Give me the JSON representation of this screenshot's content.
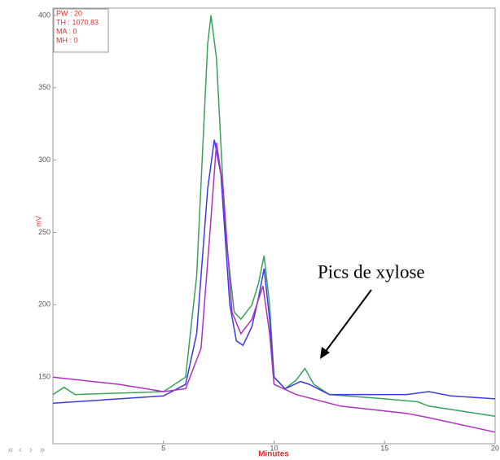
{
  "chart_data": {
    "type": "line",
    "y_label": "mV",
    "x_label": "Minutes",
    "info": [
      "PW : 20",
      "TH : 1070,83",
      "MA : 0",
      "MH : 0"
    ],
    "annotation": "Pics de xylose",
    "nav": [
      "«",
      "‹",
      "›",
      "»"
    ],
    "xlim": [
      0,
      20
    ],
    "xticks": [
      5,
      10,
      15,
      20
    ],
    "ylim": [
      104,
      405
    ],
    "yticks": [
      150,
      200,
      250,
      300,
      350,
      400
    ],
    "series": [
      {
        "name": "green",
        "color": "#3aa05a",
        "x": [
          0,
          0.5,
          1,
          5,
          6,
          6.5,
          7,
          7.15,
          7.4,
          7.8,
          8.2,
          8.5,
          9,
          9.3,
          9.55,
          9.8,
          10,
          10.5,
          11,
          11.4,
          11.8,
          12.5,
          15,
          16.5,
          17,
          20
        ],
        "values": [
          138,
          143,
          138,
          140,
          150,
          220,
          380,
          400,
          370,
          250,
          195,
          190,
          200,
          215,
          234,
          200,
          150,
          142,
          148,
          156,
          145,
          138,
          135,
          133,
          130,
          123
        ]
      },
      {
        "name": "blue",
        "color": "#3a3ae0",
        "x": [
          0,
          5,
          6,
          6.5,
          7,
          7.3,
          7.6,
          8,
          8.3,
          8.6,
          9,
          9.3,
          9.55,
          9.8,
          10,
          10.5,
          11.2,
          11.6,
          12.5,
          16,
          17,
          18,
          20
        ],
        "values": [
          132,
          137,
          145,
          180,
          280,
          314,
          290,
          200,
          175,
          172,
          185,
          205,
          225,
          190,
          150,
          142,
          147,
          145,
          138,
          138,
          140,
          137,
          135
        ]
      },
      {
        "name": "purple",
        "color": "#b030c0",
        "x": [
          0,
          3,
          5,
          6,
          6.7,
          7.1,
          7.4,
          7.7,
          8.1,
          8.5,
          9,
          9.5,
          9.8,
          10,
          11,
          13,
          16,
          17,
          20
        ],
        "values": [
          150,
          145,
          140,
          142,
          170,
          250,
          312,
          280,
          195,
          180,
          190,
          213,
          180,
          145,
          138,
          130,
          125,
          122,
          112
        ]
      }
    ]
  }
}
